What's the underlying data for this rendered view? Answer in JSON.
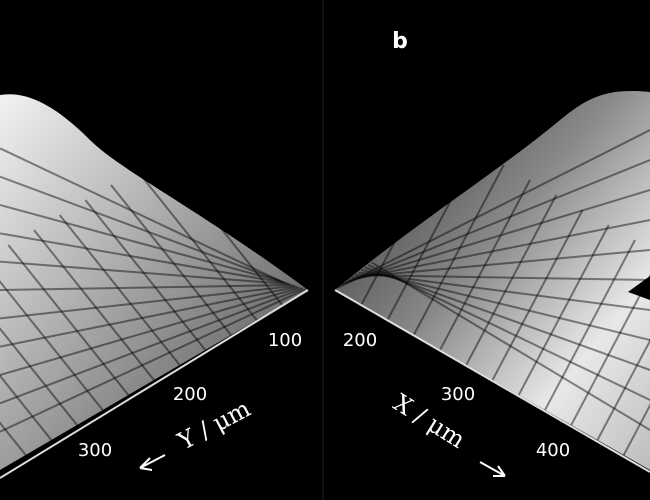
{
  "panels": [
    {
      "axis": {
        "ticks": [
          "100",
          "200",
          "300"
        ],
        "label": "Y / μm"
      }
    },
    {
      "label": "b",
      "axis": {
        "ticks": [
          "200",
          "300",
          "400"
        ],
        "label": "X / μm"
      }
    }
  ]
}
